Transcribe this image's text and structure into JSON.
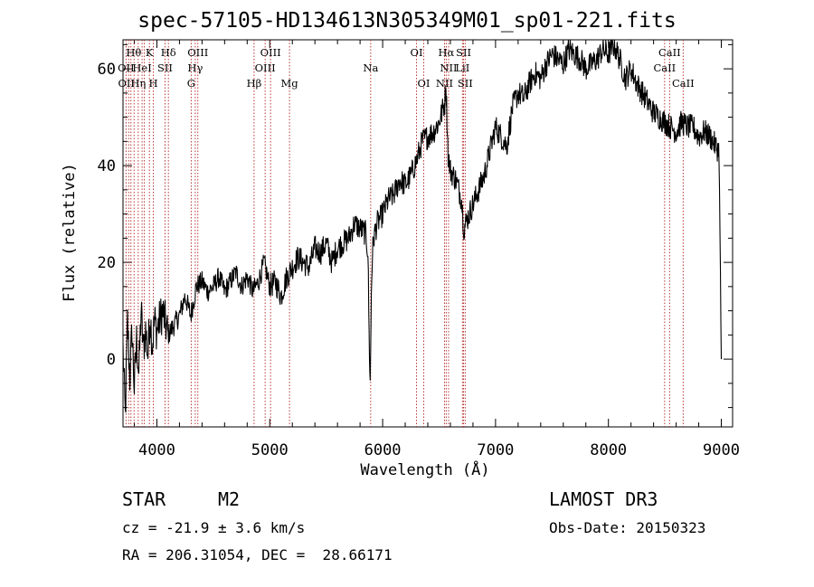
{
  "title": "spec-57105-HD134613N305349M01_sp01-221.fits",
  "footer": {
    "object_class": "STAR",
    "subclass": "M2",
    "survey": "LAMOST DR3",
    "redshift": "cz = -21.9 ± 3.6 km/s",
    "obs_date": "Obs-Date: 20150323",
    "coords": "RA = 206.31054, DEC =  28.66171"
  },
  "chart_data": {
    "type": "line",
    "title": "spec-57105-HD134613N305349M01_sp01-221.fits",
    "xlabel": "Wavelength (Å)",
    "ylabel": "Flux (relative)",
    "xlim": [
      3700,
      9100
    ],
    "ylim": [
      -14,
      66
    ],
    "xticks": [
      4000,
      5000,
      6000,
      7000,
      8000,
      9000
    ],
    "yticks": [
      0,
      20,
      40,
      60
    ],
    "grid": false,
    "line_color": "#000000",
    "marker_color": "#b22222",
    "series": [
      {
        "x": [
          3700,
          3720,
          3740,
          3760,
          3780,
          3800,
          3820,
          3840,
          3860,
          3880,
          3900,
          3920,
          3940,
          3960,
          3980,
          4000,
          4050,
          4100,
          4150,
          4200,
          4250,
          4300,
          4350,
          4400,
          4450,
          4500,
          4550,
          4600,
          4650,
          4700,
          4750,
          4800,
          4850,
          4900,
          4950,
          5000,
          5050,
          5100,
          5150,
          5200,
          5250,
          5300,
          5350,
          5400,
          5450,
          5500,
          5550,
          5600,
          5650,
          5700,
          5750,
          5800,
          5850,
          5870,
          5880,
          5890,
          5900,
          5910,
          5920,
          5950,
          6000,
          6050,
          6100,
          6150,
          6200,
          6250,
          6300,
          6350,
          6400,
          6450,
          6500,
          6550,
          6560,
          6570,
          6580,
          6600,
          6650,
          6700,
          6720,
          6750,
          6800,
          6850,
          6900,
          6950,
          7000,
          7050,
          7100,
          7150,
          7200,
          7250,
          7300,
          7350,
          7400,
          7450,
          7500,
          7550,
          7600,
          7650,
          7700,
          7750,
          7800,
          7850,
          7900,
          7950,
          8000,
          8050,
          8100,
          8150,
          8200,
          8250,
          8300,
          8350,
          8400,
          8450,
          8500,
          8550,
          8600,
          8650,
          8700,
          8750,
          8800,
          8850,
          8900,
          8950,
          8980,
          9000
        ],
        "y": [
          2,
          -12,
          8,
          -4,
          6,
          -6,
          4,
          -3,
          10,
          2,
          6,
          1,
          9,
          3,
          8,
          6,
          10,
          5,
          7,
          9,
          13,
          9,
          15,
          16,
          14,
          15,
          17,
          14,
          16,
          18,
          15,
          17,
          14,
          16,
          20,
          15,
          16,
          13,
          17,
          19,
          21,
          20,
          19,
          23,
          22,
          24,
          20,
          23,
          24,
          25,
          28,
          27,
          26,
          22,
          5,
          -5,
          14,
          22,
          25,
          28,
          30,
          33,
          34,
          37,
          36,
          38,
          41,
          45,
          46,
          47,
          49,
          53,
          57,
          50,
          42,
          39,
          37,
          33,
          27,
          29,
          32,
          35,
          38,
          43,
          48,
          46,
          44,
          52,
          55,
          54,
          57,
          59,
          58,
          61,
          63,
          62,
          61,
          64,
          63,
          62,
          60,
          61,
          62,
          64,
          63,
          65,
          62,
          58,
          60,
          57,
          55,
          53,
          51,
          50,
          49,
          48,
          47,
          49,
          48,
          48,
          46,
          47,
          46,
          44,
          43,
          0
        ]
      }
    ],
    "lines": [
      {
        "wave": 3727,
        "label": "OII"
      },
      {
        "wave": 3750,
        "label": "OII"
      },
      {
        "wave": 3770,
        "label": "Hθ"
      },
      {
        "wave": 3798,
        "label": "Hθ"
      },
      {
        "wave": 3835,
        "label": "Hη"
      },
      {
        "wave": 3869,
        "label": "HeI"
      },
      {
        "wave": 3889,
        "label": "HeI"
      },
      {
        "wave": 3934,
        "label": "K"
      },
      {
        "wave": 3969,
        "label": "H"
      },
      {
        "wave": 4072,
        "label": "SII"
      },
      {
        "wave": 4102,
        "label": "Hδ"
      },
      {
        "wave": 4304,
        "label": "G"
      },
      {
        "wave": 4340,
        "label": "Hγ"
      },
      {
        "wave": 4363,
        "label": "OIII"
      },
      {
        "wave": 4861,
        "label": "Hβ"
      },
      {
        "wave": 4959,
        "label": "OIII"
      },
      {
        "wave": 5007,
        "label": "OIII"
      },
      {
        "wave": 5175,
        "label": "Mg"
      },
      {
        "wave": 5894,
        "label": "Na"
      },
      {
        "wave": 6300,
        "label": "OI"
      },
      {
        "wave": 6364,
        "label": "OI"
      },
      {
        "wave": 6548,
        "label": "NII"
      },
      {
        "wave": 6563,
        "label": "Hα"
      },
      {
        "wave": 6584,
        "label": "NII"
      },
      {
        "wave": 6707,
        "label": "LiI"
      },
      {
        "wave": 6717,
        "label": "SII"
      },
      {
        "wave": 6731,
        "label": "SII"
      },
      {
        "wave": 8498,
        "label": "CaII"
      },
      {
        "wave": 8542,
        "label": "CaII"
      },
      {
        "wave": 8662,
        "label": "CaII"
      }
    ],
    "line_label_rows": [
      [
        {
          "text": "Hθ",
          "wave": 3795
        },
        {
          "text": "K",
          "wave": 3934
        },
        {
          "text": "Hδ",
          "wave": 4102
        },
        {
          "text": "OIII",
          "wave": 4363
        },
        {
          "text": "OIII",
          "wave": 5007
        },
        {
          "text": "OI",
          "wave": 6300
        },
        {
          "text": "Hα",
          "wave": 6563
        },
        {
          "text": "SII",
          "wave": 6717
        },
        {
          "text": "CaII",
          "wave": 8542
        }
      ],
      [
        {
          "text": "OII",
          "wave": 3727
        },
        {
          "text": "HeI",
          "wave": 3869
        },
        {
          "text": "SII",
          "wave": 4072
        },
        {
          "text": "Hγ",
          "wave": 4340
        },
        {
          "text": "OIII",
          "wave": 4959
        },
        {
          "text": "Na",
          "wave": 5894
        },
        {
          "text": "NII",
          "wave": 6584
        },
        {
          "text": "LiI",
          "wave": 6707
        },
        {
          "text": "CaII",
          "wave": 8498
        }
      ],
      [
        {
          "text": "OII",
          "wave": 3730
        },
        {
          "text": "Hη",
          "wave": 3835
        },
        {
          "text": "H",
          "wave": 3969
        },
        {
          "text": "G",
          "wave": 4304
        },
        {
          "text": "Hβ",
          "wave": 4861
        },
        {
          "text": "Mg",
          "wave": 5175
        },
        {
          "text": "OI",
          "wave": 6364
        },
        {
          "text": "NII",
          "wave": 6548
        },
        {
          "text": "SII",
          "wave": 6731
        },
        {
          "text": "CaII",
          "wave": 8662
        }
      ]
    ]
  }
}
